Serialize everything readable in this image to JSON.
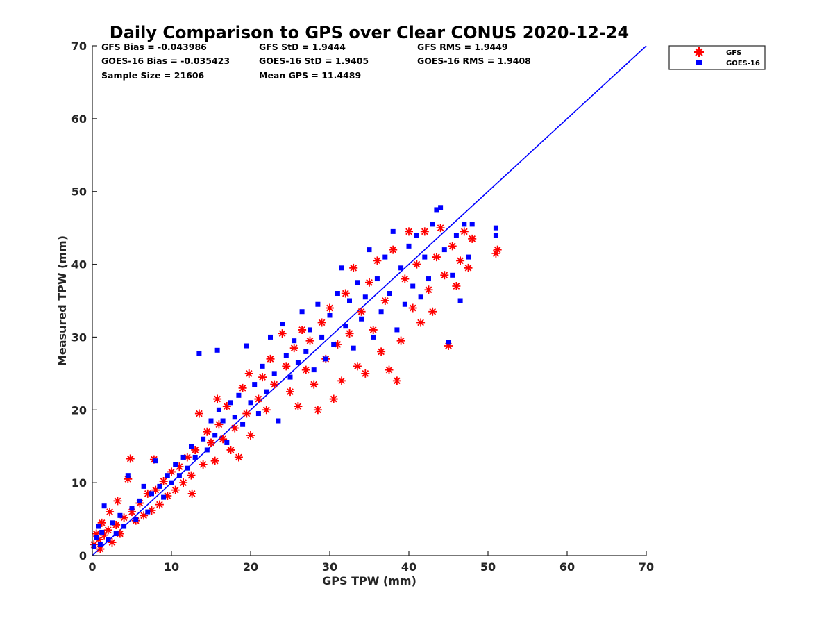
{
  "chart_data": {
    "type": "scatter",
    "title": "Daily Comparison to GPS over Clear CONUS 2020-12-24",
    "xlabel": "GPS TPW (mm)",
    "ylabel": "Measured TPW (mm)",
    "xlim": [
      0,
      70
    ],
    "ylim": [
      0,
      70
    ],
    "xticks": [
      "0",
      "10",
      "20",
      "30",
      "40",
      "50",
      "60",
      "70"
    ],
    "yticks": [
      "0",
      "10",
      "20",
      "30",
      "40",
      "50",
      "60",
      "70"
    ],
    "tick_values": [
      0,
      10,
      20,
      30,
      40,
      50,
      60,
      70
    ],
    "grid": false,
    "legend_position": "outside-top-right",
    "stats": [
      [
        "GFS Bias = -0.043986",
        "GFS StD = 1.9444",
        "GFS RMS = 1.9449"
      ],
      [
        "GOES-16 Bias = -0.035423",
        "GOES-16 StD = 1.9405",
        "GOES-16 RMS = 1.9408"
      ],
      [
        "Sample Size = 21606",
        "Mean GPS = 11.4489"
      ]
    ],
    "reference_line": {
      "name": "1:1 line",
      "x": [
        0,
        70
      ],
      "y": [
        0,
        70
      ],
      "color": "#0000ff"
    },
    "series": [
      {
        "name": "GFS",
        "marker": "asterisk",
        "color": "#ff0000",
        "bias": -0.043986,
        "std": 1.9444,
        "rms": 1.9449,
        "points": [
          [
            0.2,
            1.5
          ],
          [
            0.5,
            3.0
          ],
          [
            0.8,
            2.2
          ],
          [
            1.0,
            0.9
          ],
          [
            1.2,
            4.5
          ],
          [
            1.5,
            2.8
          ],
          [
            2.0,
            3.5
          ],
          [
            2.2,
            6.0
          ],
          [
            2.5,
            1.8
          ],
          [
            3.0,
            4.2
          ],
          [
            3.2,
            7.5
          ],
          [
            3.5,
            3.0
          ],
          [
            4.0,
            5.2
          ],
          [
            4.5,
            10.5
          ],
          [
            4.8,
            13.3
          ],
          [
            5.0,
            6.0
          ],
          [
            5.5,
            4.8
          ],
          [
            6.0,
            7.2
          ],
          [
            6.5,
            5.5
          ],
          [
            7.0,
            8.5
          ],
          [
            7.5,
            6.2
          ],
          [
            7.8,
            13.2
          ],
          [
            8.0,
            9.0
          ],
          [
            8.5,
            7.0
          ],
          [
            9.0,
            10.2
          ],
          [
            9.5,
            8.2
          ],
          [
            10.0,
            11.5
          ],
          [
            10.5,
            9.0
          ],
          [
            11.0,
            12.2
          ],
          [
            11.5,
            10.0
          ],
          [
            12.0,
            13.5
          ],
          [
            12.5,
            11.0
          ],
          [
            12.6,
            8.5
          ],
          [
            13.0,
            14.5
          ],
          [
            13.5,
            19.5
          ],
          [
            14.0,
            12.5
          ],
          [
            14.5,
            17.0
          ],
          [
            15.0,
            15.5
          ],
          [
            15.5,
            13.0
          ],
          [
            15.8,
            21.5
          ],
          [
            16.0,
            18.0
          ],
          [
            16.5,
            16.0
          ],
          [
            17.0,
            20.5
          ],
          [
            17.5,
            14.5
          ],
          [
            18.0,
            17.5
          ],
          [
            18.5,
            13.5
          ],
          [
            19.0,
            23.0
          ],
          [
            19.5,
            19.5
          ],
          [
            19.8,
            25.0
          ],
          [
            20.0,
            16.5
          ],
          [
            21.0,
            21.5
          ],
          [
            21.5,
            24.5
          ],
          [
            22.0,
            20.0
          ],
          [
            22.5,
            27.0
          ],
          [
            23.0,
            23.5
          ],
          [
            24.0,
            30.5
          ],
          [
            24.5,
            26.0
          ],
          [
            25.0,
            22.5
          ],
          [
            25.5,
            28.5
          ],
          [
            26.0,
            20.5
          ],
          [
            26.5,
            31.0
          ],
          [
            27.0,
            25.5
          ],
          [
            27.5,
            29.5
          ],
          [
            28.0,
            23.5
          ],
          [
            28.5,
            20.0
          ],
          [
            29.0,
            32.0
          ],
          [
            29.5,
            27.0
          ],
          [
            30.0,
            34.0
          ],
          [
            30.5,
            21.5
          ],
          [
            31.0,
            29.0
          ],
          [
            31.5,
            24.0
          ],
          [
            32.0,
            36.0
          ],
          [
            32.5,
            30.5
          ],
          [
            33.0,
            39.5
          ],
          [
            33.5,
            26.0
          ],
          [
            34.0,
            33.5
          ],
          [
            34.5,
            25.0
          ],
          [
            35.0,
            37.5
          ],
          [
            35.5,
            31.0
          ],
          [
            36.0,
            40.5
          ],
          [
            36.5,
            28.0
          ],
          [
            37.0,
            35.0
          ],
          [
            37.5,
            25.5
          ],
          [
            38.0,
            42.0
          ],
          [
            38.5,
            24.0
          ],
          [
            39.0,
            29.5
          ],
          [
            39.5,
            38.0
          ],
          [
            40.0,
            44.5
          ],
          [
            40.5,
            34.0
          ],
          [
            41.0,
            40.0
          ],
          [
            41.5,
            32.0
          ],
          [
            42.0,
            44.5
          ],
          [
            42.5,
            36.5
          ],
          [
            43.0,
            33.5
          ],
          [
            43.5,
            41.0
          ],
          [
            44.0,
            45.0
          ],
          [
            44.5,
            38.5
          ],
          [
            45.0,
            28.8
          ],
          [
            45.5,
            42.5
          ],
          [
            46.0,
            37.0
          ],
          [
            46.5,
            40.5
          ],
          [
            47.0,
            44.5
          ],
          [
            47.5,
            39.5
          ],
          [
            48.0,
            43.5
          ],
          [
            51.0,
            41.5
          ],
          [
            51.2,
            42.0
          ]
        ]
      },
      {
        "name": "GOES-16",
        "marker": "square",
        "color": "#0000ff",
        "bias": -0.035423,
        "std": 1.9405,
        "rms": 1.9408,
        "points": [
          [
            0.2,
            1.2
          ],
          [
            0.5,
            2.5
          ],
          [
            0.8,
            4.0
          ],
          [
            1.0,
            1.5
          ],
          [
            1.2,
            3.2
          ],
          [
            1.5,
            6.8
          ],
          [
            2.0,
            2.2
          ],
          [
            2.5,
            4.5
          ],
          [
            3.0,
            3.0
          ],
          [
            3.5,
            5.5
          ],
          [
            4.0,
            4.0
          ],
          [
            4.5,
            11.0
          ],
          [
            5.0,
            6.5
          ],
          [
            5.5,
            5.0
          ],
          [
            6.0,
            7.5
          ],
          [
            6.5,
            9.5
          ],
          [
            7.0,
            6.0
          ],
          [
            7.5,
            8.5
          ],
          [
            8.0,
            13.0
          ],
          [
            8.5,
            9.5
          ],
          [
            9.0,
            8.0
          ],
          [
            9.5,
            11.0
          ],
          [
            10.0,
            10.0
          ],
          [
            10.5,
            12.5
          ],
          [
            11.0,
            11.0
          ],
          [
            11.5,
            13.5
          ],
          [
            12.0,
            12.0
          ],
          [
            12.5,
            15.0
          ],
          [
            13.0,
            13.5
          ],
          [
            13.5,
            27.8
          ],
          [
            14.0,
            16.0
          ],
          [
            14.5,
            14.5
          ],
          [
            15.0,
            18.5
          ],
          [
            15.5,
            16.5
          ],
          [
            15.8,
            28.2
          ],
          [
            16.0,
            20.0
          ],
          [
            16.5,
            18.5
          ],
          [
            17.0,
            15.5
          ],
          [
            17.5,
            21.0
          ],
          [
            18.0,
            19.0
          ],
          [
            18.5,
            22.0
          ],
          [
            19.0,
            18.0
          ],
          [
            19.5,
            28.8
          ],
          [
            20.0,
            21.0
          ],
          [
            20.5,
            23.5
          ],
          [
            21.0,
            19.5
          ],
          [
            21.5,
            26.0
          ],
          [
            22.0,
            22.5
          ],
          [
            22.5,
            30.0
          ],
          [
            23.0,
            25.0
          ],
          [
            23.5,
            18.5
          ],
          [
            24.0,
            31.8
          ],
          [
            24.5,
            27.5
          ],
          [
            25.0,
            24.5
          ],
          [
            25.5,
            29.5
          ],
          [
            26.0,
            26.5
          ],
          [
            26.5,
            33.5
          ],
          [
            27.0,
            28.0
          ],
          [
            27.5,
            31.0
          ],
          [
            28.0,
            25.5
          ],
          [
            28.5,
            34.5
          ],
          [
            29.0,
            30.0
          ],
          [
            29.5,
            27.0
          ],
          [
            30.0,
            33.0
          ],
          [
            30.5,
            29.0
          ],
          [
            31.0,
            36.0
          ],
          [
            31.5,
            39.5
          ],
          [
            32.0,
            31.5
          ],
          [
            32.5,
            35.0
          ],
          [
            33.0,
            28.5
          ],
          [
            33.5,
            37.5
          ],
          [
            34.0,
            32.5
          ],
          [
            34.5,
            35.5
          ],
          [
            35.0,
            42.0
          ],
          [
            35.5,
            30.0
          ],
          [
            36.0,
            38.0
          ],
          [
            36.5,
            33.5
          ],
          [
            37.0,
            41.0
          ],
          [
            37.5,
            36.0
          ],
          [
            38.0,
            44.5
          ],
          [
            38.5,
            31.0
          ],
          [
            39.0,
            39.5
          ],
          [
            39.5,
            34.5
          ],
          [
            40.0,
            42.5
          ],
          [
            40.5,
            37.0
          ],
          [
            41.0,
            44.0
          ],
          [
            41.5,
            35.5
          ],
          [
            42.0,
            41.0
          ],
          [
            42.5,
            38.0
          ],
          [
            43.0,
            45.5
          ],
          [
            43.5,
            47.5
          ],
          [
            44.0,
            47.8
          ],
          [
            44.5,
            42.0
          ],
          [
            45.0,
            29.3
          ],
          [
            45.5,
            38.5
          ],
          [
            46.0,
            44.0
          ],
          [
            46.5,
            35.0
          ],
          [
            47.0,
            45.5
          ],
          [
            47.5,
            41.0
          ],
          [
            48.0,
            45.5
          ],
          [
            51.0,
            45.0
          ],
          [
            51.0,
            44.0
          ]
        ]
      }
    ],
    "sample_size": 21606,
    "mean_gps": 11.4489
  }
}
